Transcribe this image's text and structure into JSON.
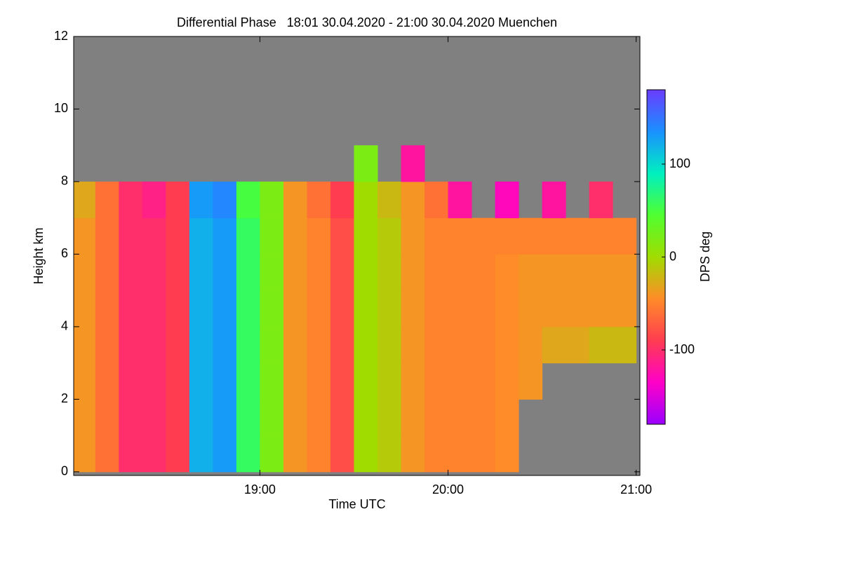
{
  "chart_data": {
    "type": "heatmap",
    "title": "Differential Phase   18:01 30.04.2020 - 21:00 30.04.2020 Muenchen",
    "x_label": "Time UTC",
    "y_label": "Height km",
    "colorbar_label": "DPS deg",
    "xlim": [
      18.01,
      21.02
    ],
    "xticks": [
      {
        "value": 19,
        "label": "19:00"
      },
      {
        "value": 20,
        "label": "20:00"
      },
      {
        "value": 21,
        "label": "21:00"
      }
    ],
    "ylim": [
      -0.1,
      12
    ],
    "yticks": [
      0,
      2,
      4,
      6,
      8,
      10,
      12
    ],
    "clim": [
      -180,
      180
    ],
    "cticks": [
      -100,
      0,
      100
    ],
    "colormap": [
      "#9a00ff",
      "#ff00c8",
      "#ff3c50",
      "#ff8c28",
      "#a0dc00",
      "#50ff30",
      "#00f0c0",
      "#1a90ff",
      "#6a3cff"
    ],
    "missing_color": "#808080",
    "x": [
      18.0625,
      18.1875,
      18.3125,
      18.4375,
      18.5625,
      18.6875,
      18.8125,
      18.9375,
      19.0625,
      19.1875,
      19.3125,
      19.4375,
      19.5625,
      19.6875,
      19.8125,
      19.9375,
      20.0625,
      20.1875,
      20.3125,
      20.4375,
      20.5625,
      20.6875,
      20.8125,
      20.9375
    ],
    "y": [
      0.5,
      1.5,
      2.5,
      3.5,
      4.5,
      5.5,
      6.5,
      7.5,
      8.5,
      9.5,
      10.5,
      11.5
    ],
    "z": [
      [
        -40,
        -60,
        -100,
        -100,
        -90,
        120,
        130,
        60,
        20,
        -40,
        -50,
        -80,
        0,
        -10,
        -40,
        -50,
        -50,
        -50,
        -45,
        null,
        null,
        null,
        null,
        null
      ],
      [
        -40,
        -60,
        -100,
        -100,
        -90,
        120,
        130,
        60,
        20,
        -40,
        -50,
        -80,
        0,
        -10,
        -40,
        -50,
        -50,
        -50,
        -45,
        null,
        null,
        null,
        null,
        null
      ],
      [
        -40,
        -60,
        -100,
        -100,
        -90,
        120,
        130,
        60,
        20,
        -40,
        -50,
        -80,
        0,
        -10,
        -40,
        -50,
        -50,
        -50,
        -45,
        -40,
        null,
        null,
        null,
        null
      ],
      [
        -40,
        -60,
        -100,
        -100,
        -90,
        120,
        130,
        60,
        20,
        -40,
        -50,
        -80,
        0,
        -10,
        -40,
        -50,
        -50,
        -50,
        -45,
        -40,
        -30,
        -30,
        -20,
        -20
      ],
      [
        -40,
        -60,
        -100,
        -100,
        -90,
        120,
        130,
        60,
        20,
        -40,
        -50,
        -80,
        0,
        -10,
        -40,
        -50,
        -50,
        -50,
        -45,
        -40,
        -40,
        -40,
        -40,
        -40
      ],
      [
        -40,
        -60,
        -100,
        -100,
        -90,
        120,
        130,
        60,
        20,
        -40,
        -50,
        -80,
        0,
        -10,
        -40,
        -50,
        -50,
        -50,
        -45,
        -40,
        -40,
        -40,
        -40,
        -40
      ],
      [
        -40,
        -60,
        -100,
        -100,
        -90,
        120,
        130,
        60,
        20,
        -40,
        -50,
        -80,
        0,
        -10,
        -40,
        -50,
        -50,
        -50,
        -50,
        -50,
        -50,
        -50,
        -50,
        -50
      ],
      [
        -30,
        -60,
        -100,
        -110,
        -90,
        130,
        140,
        50,
        20,
        -40,
        -60,
        -90,
        0,
        -20,
        -40,
        -60,
        -120,
        null,
        -130,
        null,
        -120,
        null,
        -100,
        null
      ],
      [
        null,
        null,
        null,
        null,
        null,
        null,
        null,
        null,
        null,
        null,
        null,
        null,
        20,
        null,
        -120,
        null,
        null,
        null,
        null,
        null,
        null,
        null,
        null,
        null
      ],
      [
        null,
        null,
        null,
        null,
        null,
        null,
        null,
        null,
        null,
        null,
        null,
        null,
        null,
        null,
        null,
        null,
        null,
        null,
        null,
        null,
        null,
        null,
        null,
        null
      ],
      [
        null,
        null,
        null,
        null,
        null,
        null,
        null,
        null,
        null,
        null,
        null,
        null,
        null,
        null,
        null,
        null,
        null,
        null,
        null,
        null,
        null,
        null,
        null,
        null
      ],
      [
        null,
        null,
        null,
        null,
        null,
        null,
        null,
        null,
        null,
        null,
        null,
        null,
        null,
        null,
        null,
        null,
        null,
        null,
        null,
        null,
        null,
        null,
        null,
        null
      ]
    ]
  }
}
